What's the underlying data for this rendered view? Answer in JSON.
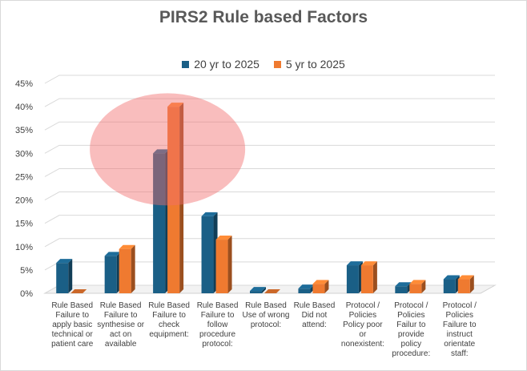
{
  "title": "PIRS2 Rule based Factors",
  "colors": {
    "series1": "#1a5f86",
    "series2": "#ef7a30",
    "highlight": "#f26d6d"
  },
  "chart_data": {
    "type": "bar",
    "title": "PIRS2 Rule based Factors",
    "ylim": [
      0,
      45
    ],
    "y_ticks": [
      "0%",
      "5%",
      "10%",
      "15%",
      "20%",
      "25%",
      "30%",
      "35%",
      "40%",
      "45%"
    ],
    "grid": true,
    "legend_position": "top",
    "categories": [
      "Rule Based Failure to apply basic technical or patient care",
      "Rule Based Failure to synthesise or act on available",
      "Rule Based Failure to check equipment:",
      "Rule Based Failure to follow procedure protocol:",
      "Rule Based Use of wrong protocol:",
      "Rule Based Did not attend:",
      "Protocol / Policies Policy poor or nonexistent:",
      "Protocol / Policies Failur to provide policy procedure:",
      "Protocol / Policies Failure to instruct orientate staff:"
    ],
    "category_lines": [
      [
        "Rule Based",
        "Failure to",
        "apply basic",
        "technical or",
        "patient care"
      ],
      [
        "Rule Based",
        "Failure to",
        "synthesise or",
        "act on",
        "available"
      ],
      [
        "Rule Based",
        "Failure to",
        "check",
        "equipment:"
      ],
      [
        "Rule Based",
        "Failure to",
        "follow",
        "procedure",
        "protocol:"
      ],
      [
        "Rule Based",
        "Use of wrong",
        "protocol:"
      ],
      [
        "Rule Based",
        "Did not",
        "attend:"
      ],
      [
        "Protocol /",
        "Policies",
        "Policy poor",
        "or",
        "nonexistent:"
      ],
      [
        "Protocol /",
        "Policies",
        "Failur to",
        "provide",
        "policy",
        "procedure:"
      ],
      [
        "Protocol /",
        "Policies",
        "Failure to",
        "instruct",
        "orientate",
        "staff:"
      ]
    ],
    "series": [
      {
        "name": "20 yr to 2025",
        "values": [
          6.5,
          8,
          30,
          16.5,
          0.5,
          1,
          6,
          1.5,
          3
        ]
      },
      {
        "name": "5 yr to 2025",
        "values": [
          0,
          9.5,
          40,
          11.5,
          0,
          2,
          6,
          2,
          3
        ]
      }
    ],
    "highlight": "ellipse around Rule Based Failure to check equipment"
  }
}
